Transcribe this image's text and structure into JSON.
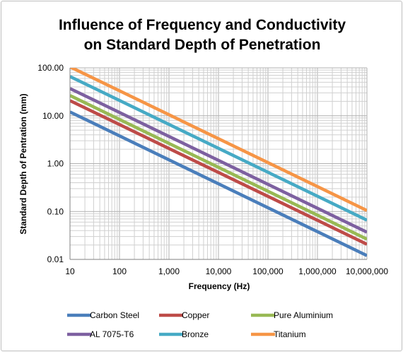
{
  "chart_data": {
    "type": "line",
    "title_line1": "Influence of Frequency and Conductivity",
    "title_line2": "on Standard Depth of Penetration",
    "xlabel": "Frequency (Hz)",
    "ylabel": "Standard Depth of Pentration (mm)",
    "x_scale": "log",
    "y_scale": "log",
    "xlim": [
      10,
      10000000
    ],
    "ylim": [
      0.01,
      100
    ],
    "grid": true,
    "legend_position": "bottom",
    "x_ticks": [
      {
        "value": 10,
        "label": "10"
      },
      {
        "value": 100,
        "label": "100"
      },
      {
        "value": 1000,
        "label": "1,000"
      },
      {
        "value": 10000,
        "label": "10,000"
      },
      {
        "value": 100000,
        "label": "100,000"
      },
      {
        "value": 1000000,
        "label": "1,000,000"
      },
      {
        "value": 10000000,
        "label": "10,000,000"
      }
    ],
    "y_ticks": [
      {
        "value": 100,
        "label": "100.00"
      },
      {
        "value": 10,
        "label": "10.00"
      },
      {
        "value": 1,
        "label": "1.00"
      },
      {
        "value": 0.1,
        "label": "0.10"
      },
      {
        "value": 0.01,
        "label": "0.01"
      }
    ],
    "series": [
      {
        "name": "Carbon Steel",
        "color": "#4a7ebb",
        "x": [
          10,
          10000000
        ],
        "y": [
          12.0,
          0.012
        ]
      },
      {
        "name": "Copper",
        "color": "#be4b48",
        "x": [
          10,
          10000000
        ],
        "y": [
          20.7,
          0.0207
        ]
      },
      {
        "name": "Pure Aluminium",
        "color": "#98b954",
        "x": [
          10,
          10000000
        ],
        "y": [
          26.5,
          0.0265
        ]
      },
      {
        "name": "AL 7075-T6",
        "color": "#7d60a0",
        "x": [
          10,
          10000000
        ],
        "y": [
          37.0,
          0.037
        ]
      },
      {
        "name": "Bronze",
        "color": "#46aac5",
        "x": [
          10,
          10000000
        ],
        "y": [
          66.0,
          0.066
        ]
      },
      {
        "name": "Titanium",
        "color": "#f69546",
        "x": [
          10,
          10000000
        ],
        "y": [
          105.0,
          0.105
        ]
      }
    ]
  }
}
